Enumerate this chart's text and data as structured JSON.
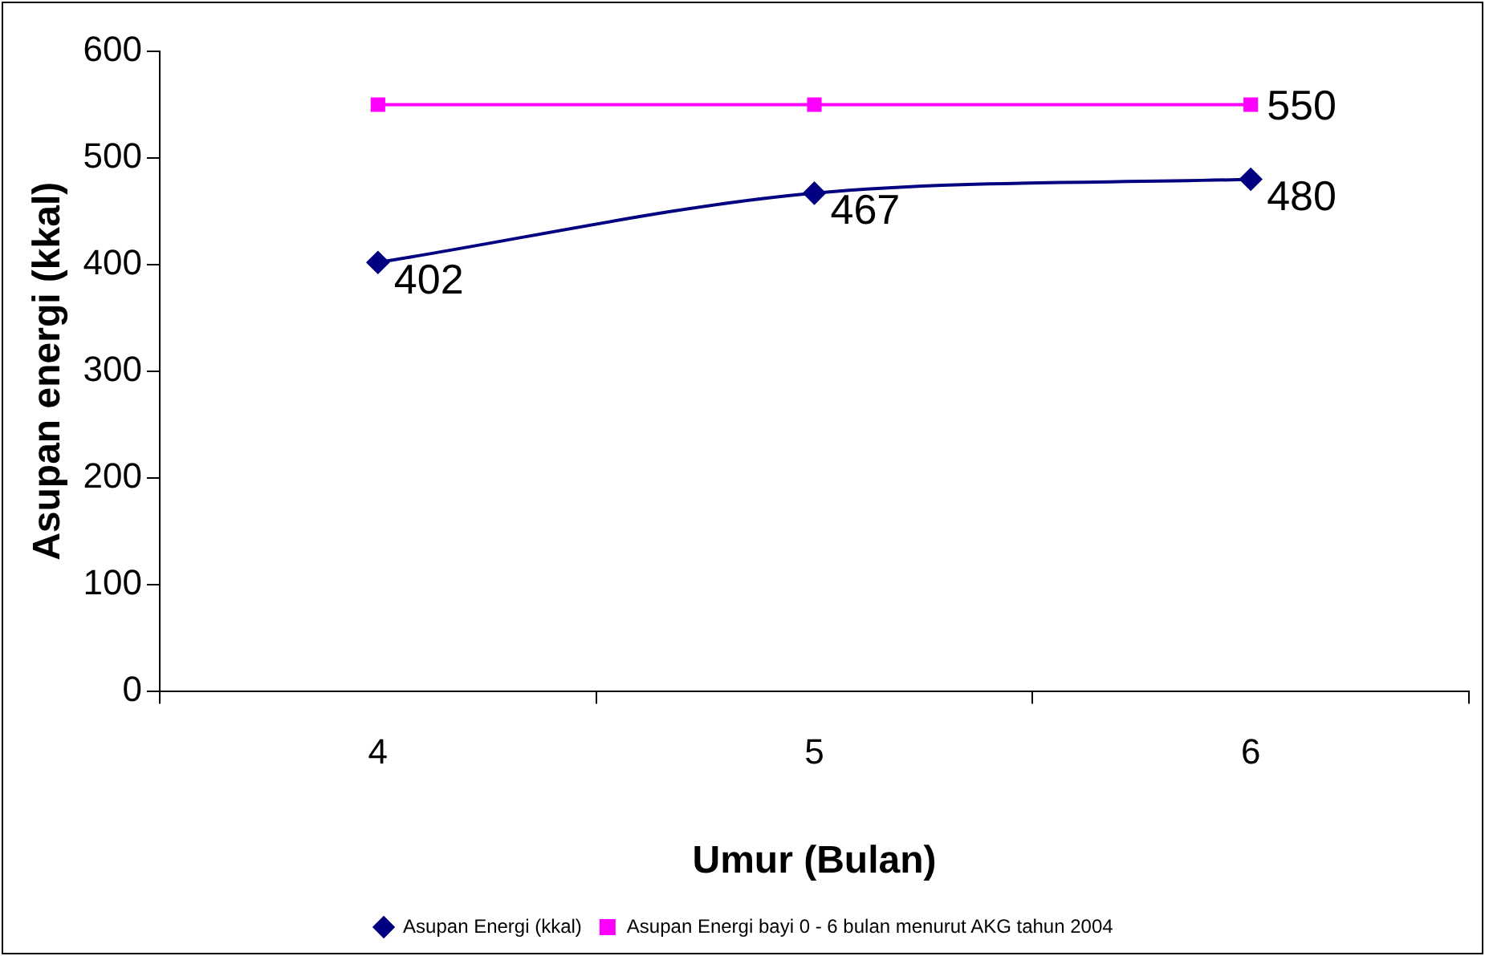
{
  "chart_data": {
    "type": "line",
    "xlabel": "Umur (Bulan)",
    "ylabel": "Asupan energi (kkal)",
    "categories": [
      "4",
      "5",
      "6"
    ],
    "series": [
      {
        "name": "Asupan Energi (kkal)",
        "color": "#000080",
        "values": [
          402,
          467,
          480
        ],
        "value_labels": [
          "402",
          "467",
          "480"
        ],
        "marker": "diamond"
      },
      {
        "name": "Asupan Energi bayi 0 - 6 bulan menurut AKG tahun 2004",
        "color": "#ff00ff",
        "values": [
          550,
          550,
          550
        ],
        "value_labels": [
          null,
          null,
          "550"
        ],
        "marker": "square"
      }
    ],
    "ylim": [
      0,
      600
    ],
    "yticks": [
      0,
      100,
      200,
      300,
      400,
      500,
      600
    ],
    "grid": false,
    "legend": "bottom"
  }
}
